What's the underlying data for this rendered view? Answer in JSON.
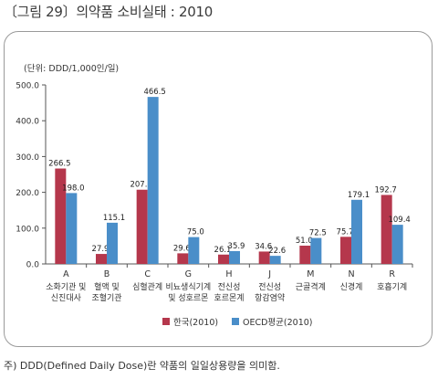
{
  "figure_title": "〔그림 29〕의약품 소비실태 : 2010",
  "footnote": "주) DDD(Defined Daily Dose)란 약품의 일일상용량을 의미함.",
  "colors": {
    "series_1": "#b5374c",
    "series_2": "#4a8ec9",
    "axis": "#555555"
  },
  "chart_data": {
    "type": "bar",
    "unit_label": "(단위: DDD/1,000인/일)",
    "ylim": [
      0,
      500
    ],
    "yticks": [
      "0.0",
      "100.0",
      "200.0",
      "300.0",
      "400.0",
      "500.0"
    ],
    "categories": [
      {
        "code": "A",
        "name": [
          "소화기관 및",
          "신진대사"
        ]
      },
      {
        "code": "B",
        "name": [
          "혈액 및",
          "조혈기관"
        ]
      },
      {
        "code": "C",
        "name": [
          "심혈관계"
        ]
      },
      {
        "code": "G",
        "name": [
          "비뇨생식기계",
          "및 성호르몬"
        ]
      },
      {
        "code": "H",
        "name": [
          "전신성",
          "호르몬계"
        ]
      },
      {
        "code": "J",
        "name": [
          "전신성",
          "항감염약"
        ]
      },
      {
        "code": "M",
        "name": [
          "근골격계"
        ]
      },
      {
        "code": "N",
        "name": [
          "신경계"
        ]
      },
      {
        "code": "R",
        "name": [
          "호흡기계"
        ]
      }
    ],
    "series": [
      {
        "name": "한국(2010)",
        "values": [
          266.5,
          27.9,
          207.3,
          29.6,
          26.1,
          34.6,
          51.0,
          75.7,
          192.7
        ]
      },
      {
        "name": "OECD평균(2010)",
        "values": [
          198.0,
          115.1,
          466.5,
          75.0,
          35.9,
          22.6,
          72.5,
          179.1,
          109.4
        ]
      }
    ],
    "legend_position": "bottom-center",
    "grid": false
  }
}
